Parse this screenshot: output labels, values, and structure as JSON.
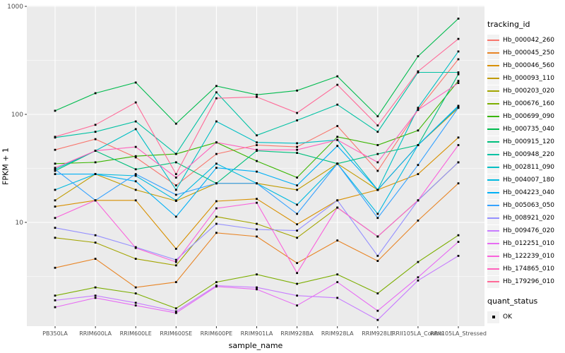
{
  "chart_data": {
    "type": "line",
    "title": "",
    "xlabel": "sample_name",
    "ylabel": "FPKM + 1",
    "y_scale": "log10",
    "ylim": [
      1.1,
      1000
    ],
    "y_ticks": [
      {
        "label": "10",
        "value": 10
      },
      {
        "label": "100",
        "value": 100
      },
      {
        "label": "1000",
        "value": 1000
      }
    ],
    "y_minor": [
      3.162,
      31.623,
      316.228
    ],
    "categories": [
      "PB350LA",
      "RRIM600LA",
      "RRIM600LE",
      "RRIM600SE",
      "RRIM600PE",
      "RRIM901LA",
      "RRIM928BA",
      "RRIM928LA",
      "RRIM928LE",
      "RRII105LA_Control",
      "RRII105LA_Stressed"
    ],
    "legend_title": "tracking_id",
    "legend2": {
      "title": "quant_status",
      "items": [
        {
          "label": "OK",
          "marker": "black-square"
        }
      ]
    },
    "point_color": "#000000",
    "panel_bg": "#EBEBEB",
    "grid_color": "#FFFFFF",
    "tick_text_color": "#4D4D4D",
    "series": [
      {
        "name": "Hb_000042_260",
        "color": "#F8766D",
        "values": [
          47,
          59,
          40,
          22,
          43,
          52,
          50,
          78,
          30,
          110,
          324
        ]
      },
      {
        "name": "Hb_000045_250",
        "color": "#E88526",
        "values": [
          3.8,
          4.6,
          2.5,
          2.8,
          8,
          7.4,
          4.2,
          6.8,
          4.4,
          10.4,
          23
        ]
      },
      {
        "name": "Hb_000046_560",
        "color": "#D89000",
        "values": [
          14,
          16,
          16,
          5.7,
          15.7,
          16.5,
          9.6,
          16,
          20,
          28,
          61
        ]
      },
      {
        "name": "Hb_000093_110",
        "color": "#C09B00",
        "values": [
          16,
          28,
          20,
          15.8,
          23,
          23,
          20,
          35,
          20,
          52,
          115
        ]
      },
      {
        "name": "Hb_000203_020",
        "color": "#A3A500",
        "values": [
          7.2,
          6.5,
          4.6,
          4.0,
          11.3,
          9.7,
          7.2,
          13.7,
          7.4,
          16,
          36
        ]
      },
      {
        "name": "Hb_000676_160",
        "color": "#7CAE00",
        "values": [
          2.1,
          2.5,
          2.2,
          1.6,
          2.8,
          3.3,
          2.7,
          3.3,
          2.2,
          4.3,
          7.6
        ]
      },
      {
        "name": "Hb_000699_090",
        "color": "#39B600",
        "values": [
          35,
          36,
          41,
          43,
          55,
          37,
          26,
          62,
          52,
          71,
          204
        ]
      },
      {
        "name": "Hb_000735_040",
        "color": "#00BB4E",
        "values": [
          108,
          157,
          197,
          82,
          183,
          152,
          166,
          225,
          96,
          345,
          770
        ]
      },
      {
        "name": "Hb_000915_120",
        "color": "#00BF7D",
        "values": [
          30,
          46,
          31,
          36,
          23,
          46,
          44,
          35,
          43,
          52,
          235
        ]
      },
      {
        "name": "Hb_000948_220",
        "color": "#00C1A3",
        "values": [
          61,
          69,
          86,
          43,
          160,
          64,
          88,
          123,
          69,
          245,
          245
        ]
      },
      {
        "name": "Hb_002811_090",
        "color": "#00BFC4",
        "values": [
          31,
          46,
          73,
          20,
          86,
          55,
          54,
          58,
          20,
          115,
          382
        ]
      },
      {
        "name": "Hb_004007_180",
        "color": "#00BAE0",
        "values": [
          20,
          28,
          27,
          16,
          35,
          23,
          14.6,
          35,
          12,
          52,
          120
        ]
      },
      {
        "name": "Hb_004223_040",
        "color": "#00B0F6",
        "values": [
          28,
          28,
          24,
          11.3,
          32,
          29.5,
          22,
          51,
          20,
          52,
          118
        ]
      },
      {
        "name": "Hb_005063_050",
        "color": "#35A2FF",
        "values": [
          31,
          16,
          28,
          18,
          23,
          23,
          12,
          35,
          11,
          34,
          115
        ]
      },
      {
        "name": "Hb_008921_020",
        "color": "#9590FF",
        "values": [
          8.9,
          7.6,
          5.9,
          4.5,
          9.7,
          8.6,
          8.4,
          16,
          4.9,
          16,
          36
        ]
      },
      {
        "name": "Hb_009476_020",
        "color": "#C77CFF",
        "values": [
          1.9,
          2.1,
          1.8,
          1.5,
          2.6,
          2.5,
          2.1,
          2.0,
          1.25,
          2.9,
          4.9
        ]
      },
      {
        "name": "Hb_012251_010",
        "color": "#E76BF3",
        "values": [
          1.64,
          2.0,
          1.7,
          1.45,
          2.55,
          2.4,
          1.7,
          2.8,
          1.52,
          3.1,
          6.6
        ]
      },
      {
        "name": "Hb_122239_010",
        "color": "#FA62DB",
        "values": [
          11,
          16,
          5.8,
          4.3,
          13.5,
          15.2,
          3.4,
          13.7,
          7.4,
          16,
          52
        ]
      },
      {
        "name": "Hb_174865_010",
        "color": "#FF62BC",
        "values": [
          32,
          46,
          50,
          26,
          55,
          47,
          47,
          58,
          36,
          110,
          195
        ]
      },
      {
        "name": "Hb_179296_010",
        "color": "#FF6A98",
        "values": [
          62,
          80,
          129,
          28,
          141,
          145,
          103,
          188,
          79,
          250,
          500
        ]
      }
    ]
  }
}
